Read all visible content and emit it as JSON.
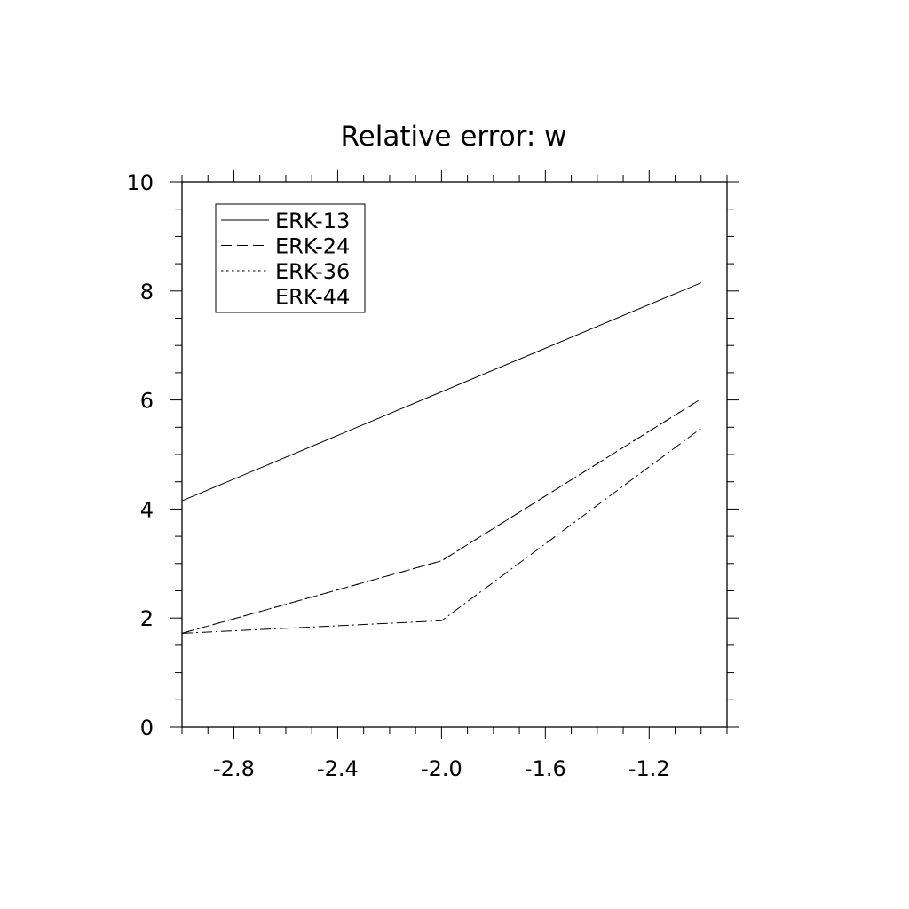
{
  "chart_data": {
    "type": "line",
    "title": "Relative error: w",
    "xlabel": "",
    "ylabel": "",
    "xlim": [
      -3.0,
      -0.9
    ],
    "ylim": [
      0,
      10
    ],
    "x_ticks": [
      -2.8,
      -2.4,
      -2.0,
      -1.6,
      -1.2
    ],
    "x_tick_labels": [
      "-2.8",
      "-2.4",
      "-2.0",
      "-1.6",
      "-1.2"
    ],
    "y_ticks": [
      0,
      2,
      4,
      6,
      8,
      10
    ],
    "y_tick_labels": [
      "0",
      "2",
      "4",
      "6",
      "8",
      "10"
    ],
    "grid": false,
    "legend_position": "top-left",
    "x": [
      -3.0,
      -2.0,
      -1.0
    ],
    "series": [
      {
        "name": "ERK-13",
        "dash": "solid",
        "values": [
          4.15,
          6.15,
          8.15
        ]
      },
      {
        "name": "ERK-24",
        "dash": "dashed",
        "values": [
          1.72,
          3.05,
          6.02
        ]
      },
      {
        "name": "ERK-36",
        "dash": "dotted",
        "values": [
          1.72,
          3.05,
          6.02
        ]
      },
      {
        "name": "ERK-44",
        "dash": "dashdot",
        "values": [
          1.72,
          1.95,
          5.48
        ]
      }
    ]
  }
}
